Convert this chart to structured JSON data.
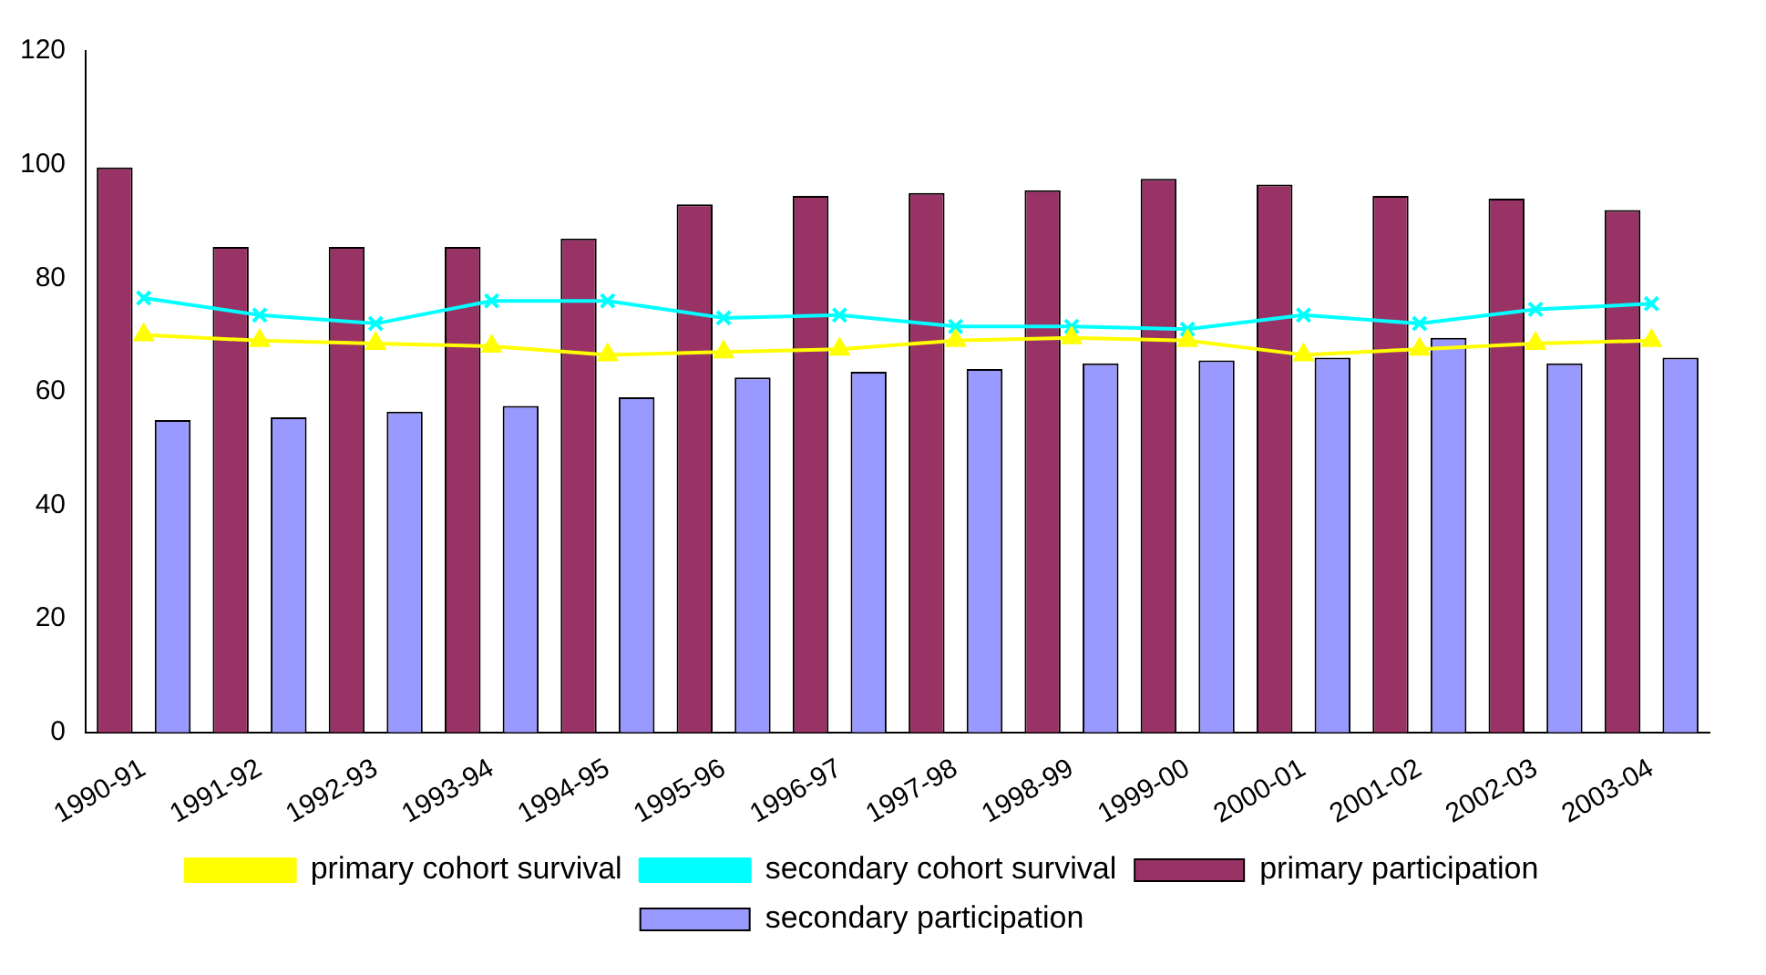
{
  "chart_data": {
    "type": "bar",
    "categories": [
      "1990-91",
      "1991-92",
      "1992-93",
      "1993-94",
      "1994-95",
      "1995-96",
      "1996-97",
      "1997-98",
      "1998-99",
      "1999-00",
      "2000-01",
      "2001-02",
      "2002-03",
      "2003-04"
    ],
    "series": [
      {
        "name": "primary participation",
        "color": "#993366",
        "values": [
          99.5,
          85.5,
          85.5,
          85.5,
          87,
          93,
          94.5,
          95,
          95.5,
          97.5,
          96.5,
          94.5,
          94,
          92
        ]
      },
      {
        "name": "secondary participation",
        "color": "#9999ff",
        "values": [
          55,
          55.5,
          56.5,
          57.5,
          59,
          62.5,
          63.5,
          64,
          65,
          65.5,
          66,
          69.5,
          65,
          66
        ]
      },
      {
        "name": "primary cohort survival",
        "type": "line",
        "marker": "triangle",
        "color": "#ffff00",
        "values": [
          70,
          69,
          68.5,
          68,
          66.5,
          67,
          67.5,
          69,
          69.5,
          69,
          66.5,
          67.5,
          68.5,
          69
        ]
      },
      {
        "name": "secondary cohort survival",
        "type": "line",
        "marker": "cross",
        "color": "#00ffff",
        "values": [
          76.5,
          73.5,
          72,
          76,
          76,
          73,
          73.5,
          71.5,
          71.5,
          71,
          73.5,
          72,
          74.5,
          75.5
        ]
      }
    ],
    "ylim": [
      0,
      120
    ],
    "yticks": [
      0,
      20,
      40,
      60,
      80,
      100,
      120
    ],
    "grid": false,
    "legend": "bottom"
  }
}
